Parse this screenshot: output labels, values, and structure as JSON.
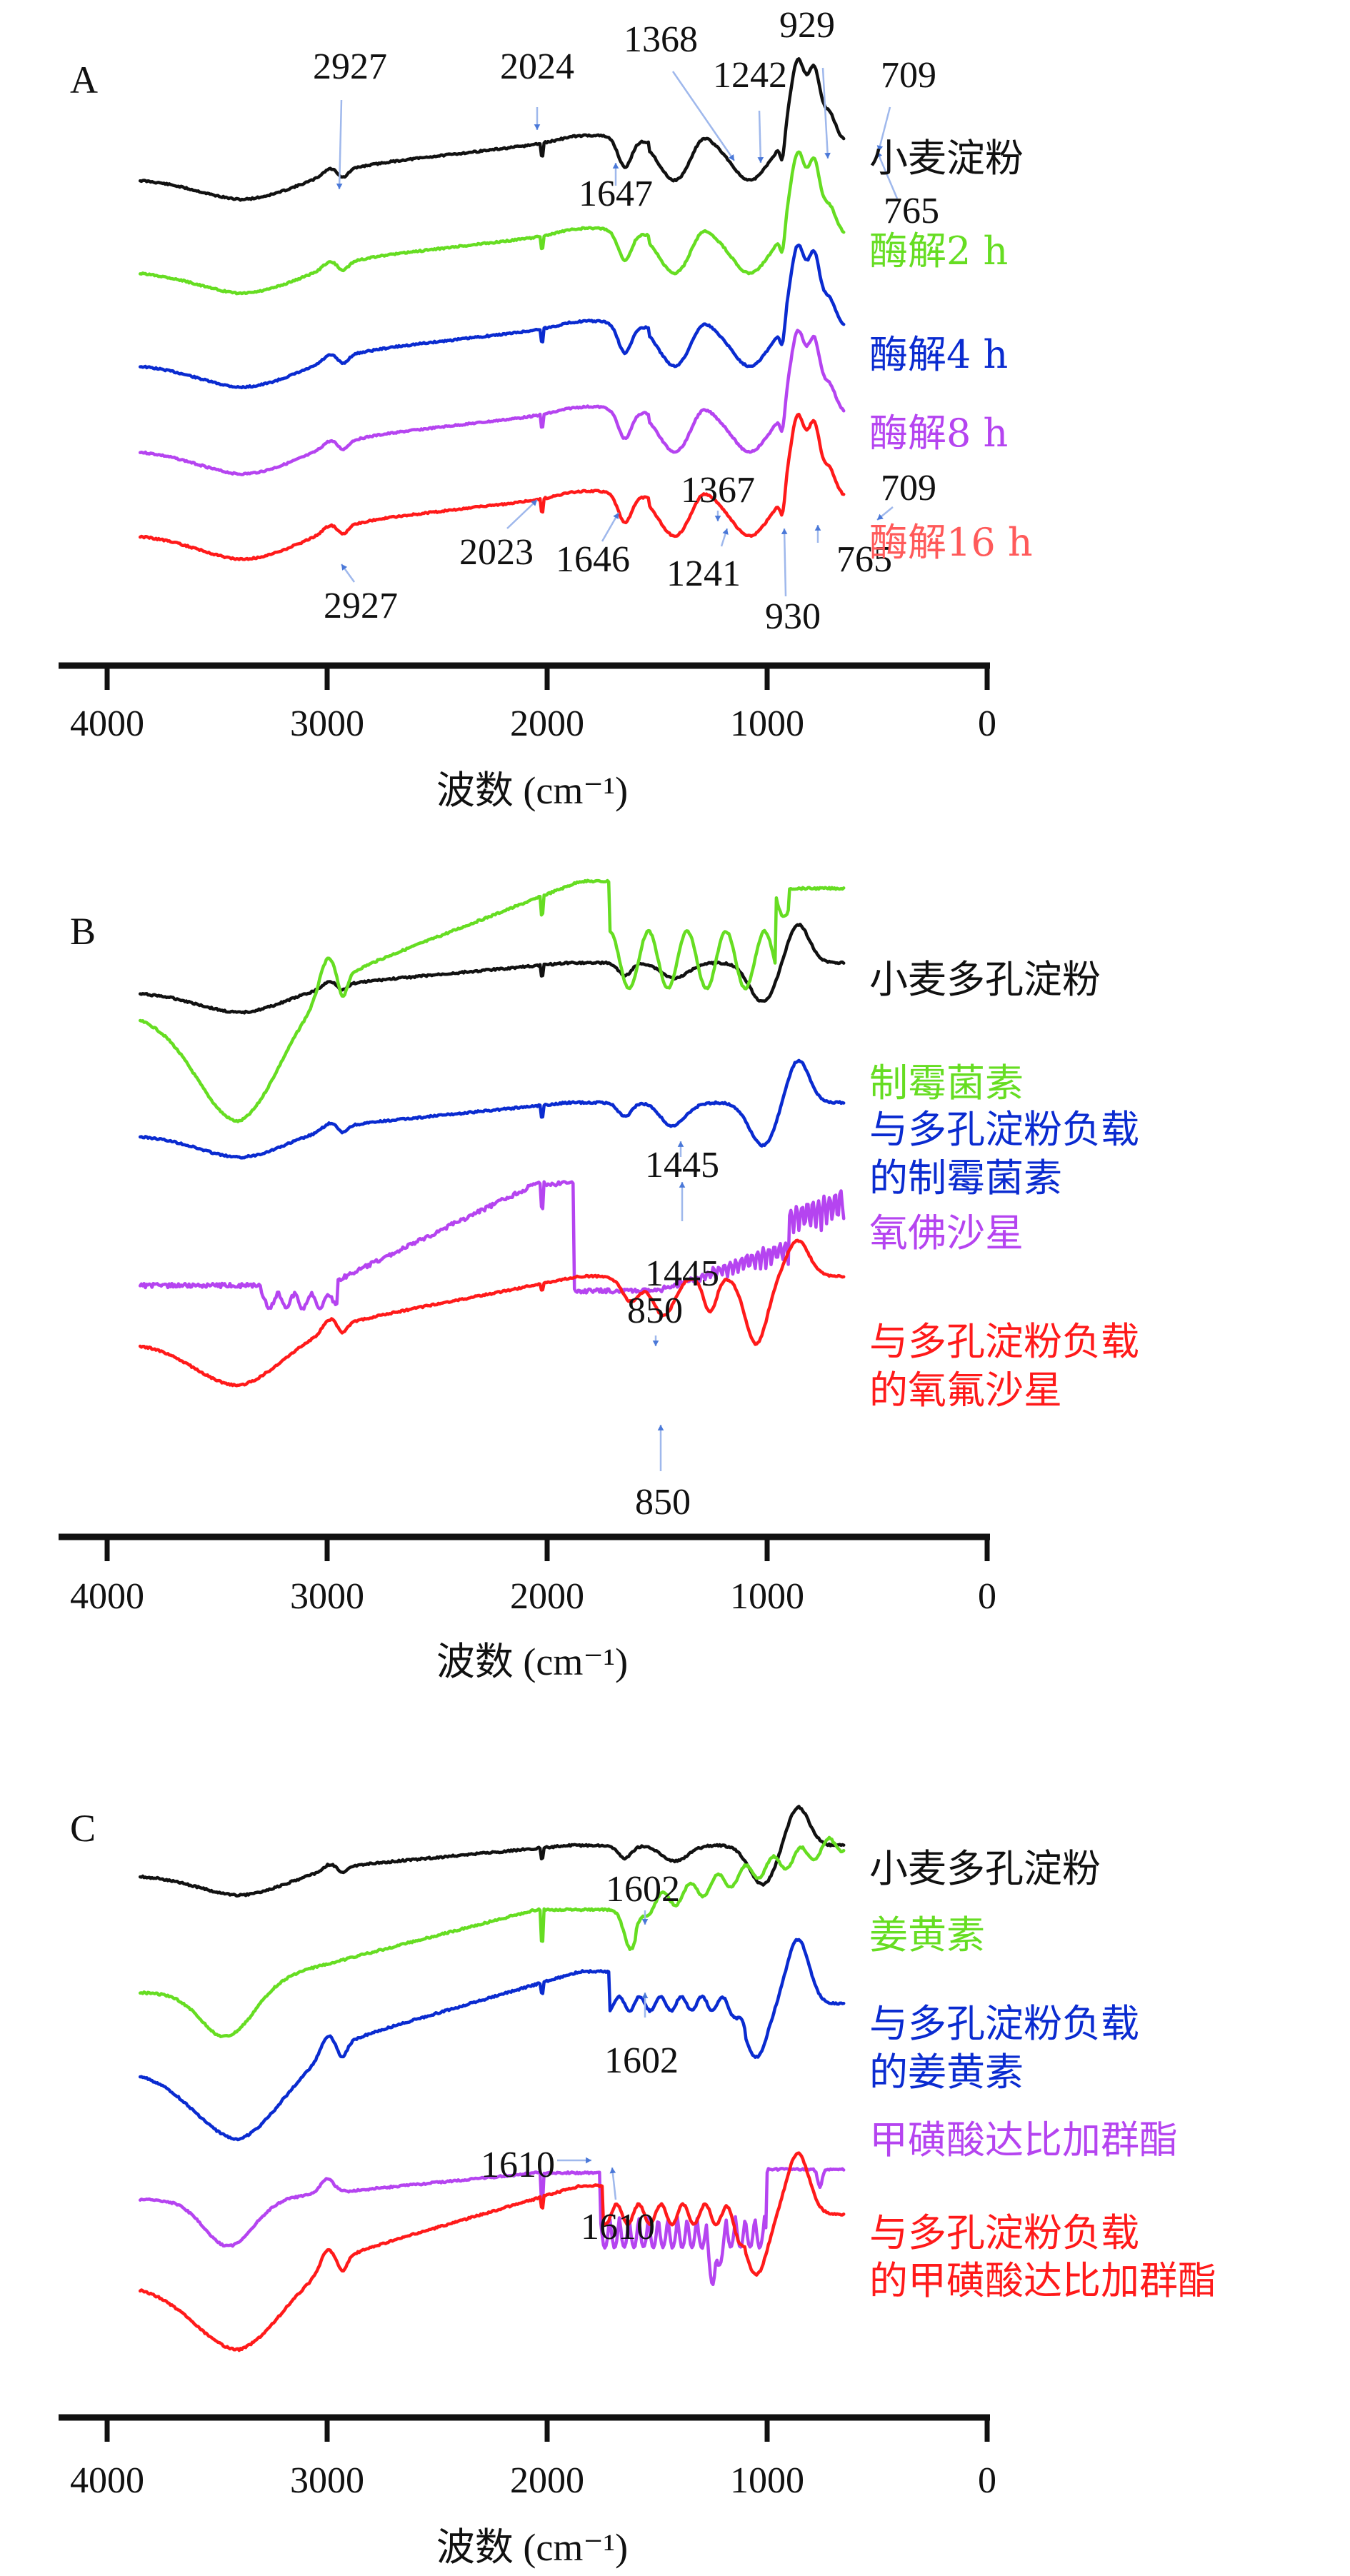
{
  "figure": {
    "panels": [
      "A",
      "B",
      "C"
    ]
  },
  "colors": {
    "black": "#111111",
    "green": "#66dd22",
    "blue": "#0a2bd0",
    "purple": "#b544f0",
    "red": "#ff1a1a",
    "red_light": "#ff5a5a",
    "annotation": "#4a78d8"
  },
  "chart_data": [
    {
      "type": "line",
      "panel": "A",
      "title": "",
      "xlabel": "波数 (cm⁻¹)",
      "ylabel": "",
      "xlim": [
        4000,
        0
      ],
      "x_ticks": [
        "4000",
        "3000",
        "2000",
        "1000",
        "0"
      ],
      "x_ticks_values": [
        4000,
        3000,
        2000,
        1000,
        0
      ],
      "grid": false,
      "legend_placement": "right (inline labels)",
      "series": [
        {
          "name": "小麦淀粉",
          "color": "black"
        },
        {
          "name": "酶解2 h",
          "color": "green"
        },
        {
          "name": "酶解4 h",
          "color": "blue"
        },
        {
          "name": "酶解8 h",
          "color": "purple"
        },
        {
          "name": "酶解16 h",
          "color": "red_light"
        }
      ],
      "annotations": [
        {
          "text": "2927",
          "series": 0,
          "x": 2927
        },
        {
          "text": "2024",
          "series": 0,
          "x": 2024
        },
        {
          "text": "1647",
          "series": 0,
          "x": 1647
        },
        {
          "text": "1368",
          "series": 0,
          "x": 1368
        },
        {
          "text": "1242",
          "series": 0,
          "x": 1242
        },
        {
          "text": "929",
          "series": 0,
          "x": 929
        },
        {
          "text": "765",
          "series": 0,
          "x": 765
        },
        {
          "text": "709",
          "series": 0,
          "x": 709
        },
        {
          "text": "2927",
          "series": 4,
          "x": 2927
        },
        {
          "text": "2023",
          "series": 4,
          "x": 2023
        },
        {
          "text": "1646",
          "series": 4,
          "x": 1646
        },
        {
          "text": "1367",
          "series": 4,
          "x": 1367
        },
        {
          "text": "1241",
          "series": 4,
          "x": 1241
        },
        {
          "text": "930",
          "series": 4,
          "x": 930
        },
        {
          "text": "765",
          "series": 4,
          "x": 765
        },
        {
          "text": "709",
          "series": 4,
          "x": 709
        }
      ]
    },
    {
      "type": "line",
      "panel": "B",
      "title": "",
      "xlabel": "波数 (cm⁻¹)",
      "ylabel": "",
      "xlim": [
        4000,
        0
      ],
      "x_ticks": [
        "4000",
        "3000",
        "2000",
        "1000",
        "0"
      ],
      "x_ticks_values": [
        4000,
        3000,
        2000,
        1000,
        0
      ],
      "grid": false,
      "legend_placement": "right (inline labels)",
      "series": [
        {
          "name": "小麦多孔淀粉",
          "color": "black"
        },
        {
          "name": "制霉菌素",
          "color": "green"
        },
        {
          "name": "与多孔淀粉负载\n的制霉菌素",
          "color": "blue"
        },
        {
          "name": "氧佛沙星",
          "color": "purple"
        },
        {
          "name": "与多孔淀粉负载\n的氧氟沙星",
          "color": "red"
        }
      ],
      "annotations": [
        {
          "text": "1445",
          "series": 1,
          "x": 1445
        },
        {
          "text": "1445",
          "series": 2,
          "x": 1445
        },
        {
          "text": "850",
          "series": 3,
          "x": 850
        },
        {
          "text": "850",
          "series": 4,
          "x": 850
        }
      ]
    },
    {
      "type": "line",
      "panel": "C",
      "title": "",
      "xlabel": "波数 (cm⁻¹)",
      "ylabel": "",
      "xlim": [
        4000,
        0
      ],
      "x_ticks": [
        "4000",
        "3000",
        "2000",
        "1000",
        "0"
      ],
      "x_ticks_values": [
        4000,
        3000,
        2000,
        1000,
        0
      ],
      "grid": false,
      "legend_placement": "right (inline labels)",
      "series": [
        {
          "name": "小麦多孔淀粉",
          "color": "black"
        },
        {
          "name": "姜黄素",
          "color": "green"
        },
        {
          "name": "与多孔淀粉负载\n的姜黄素",
          "color": "blue"
        },
        {
          "name": "甲磺酸达比加群酯",
          "color": "purple"
        },
        {
          "name": "与多孔淀粉负载\n的甲磺酸达比加群酯",
          "color": "red"
        }
      ],
      "annotations": [
        {
          "text": "1602",
          "series": 1,
          "x": 1602
        },
        {
          "text": "1602",
          "series": 2,
          "x": 1602
        },
        {
          "text": "1610",
          "series": 3,
          "x": 1610
        },
        {
          "text": "1610",
          "series": 4,
          "x": 1610
        }
      ]
    }
  ],
  "text": {
    "panelA": {
      "letter": "A",
      "legend": [
        "小麦淀粉",
        "酶解2 h",
        "酶解4 h",
        "酶解8 h",
        "酶解16 h"
      ],
      "annos_top": [
        "2927",
        "2024",
        "1368",
        "1242",
        "929",
        "709",
        "1647",
        "765"
      ],
      "annos_bottom": [
        "1367",
        "709",
        "2023",
        "1646",
        "1241",
        "765",
        "2927",
        "930"
      ]
    },
    "panelB": {
      "letter": "B",
      "legend": [
        "小麦多孔淀粉",
        "制霉菌素",
        "与多孔淀粉负载",
        "的制霉菌素",
        "氧佛沙星",
        "与多孔淀粉负载",
        "的氧氟沙星"
      ],
      "annos": [
        "1445",
        "1445",
        "850",
        "850"
      ]
    },
    "panelC": {
      "letter": "C",
      "legend": [
        "小麦多孔淀粉",
        "姜黄素",
        "与多孔淀粉负载",
        "的姜黄素",
        "甲磺酸达比加群酯",
        "与多孔淀粉负载",
        "的甲磺酸达比加群酯"
      ],
      "annos": [
        "1602",
        "1602",
        "1610",
        "1610"
      ]
    },
    "ticks": [
      "4000",
      "3000",
      "2000",
      "1000",
      "0"
    ],
    "xlabel": "波数 (cm⁻¹)"
  }
}
